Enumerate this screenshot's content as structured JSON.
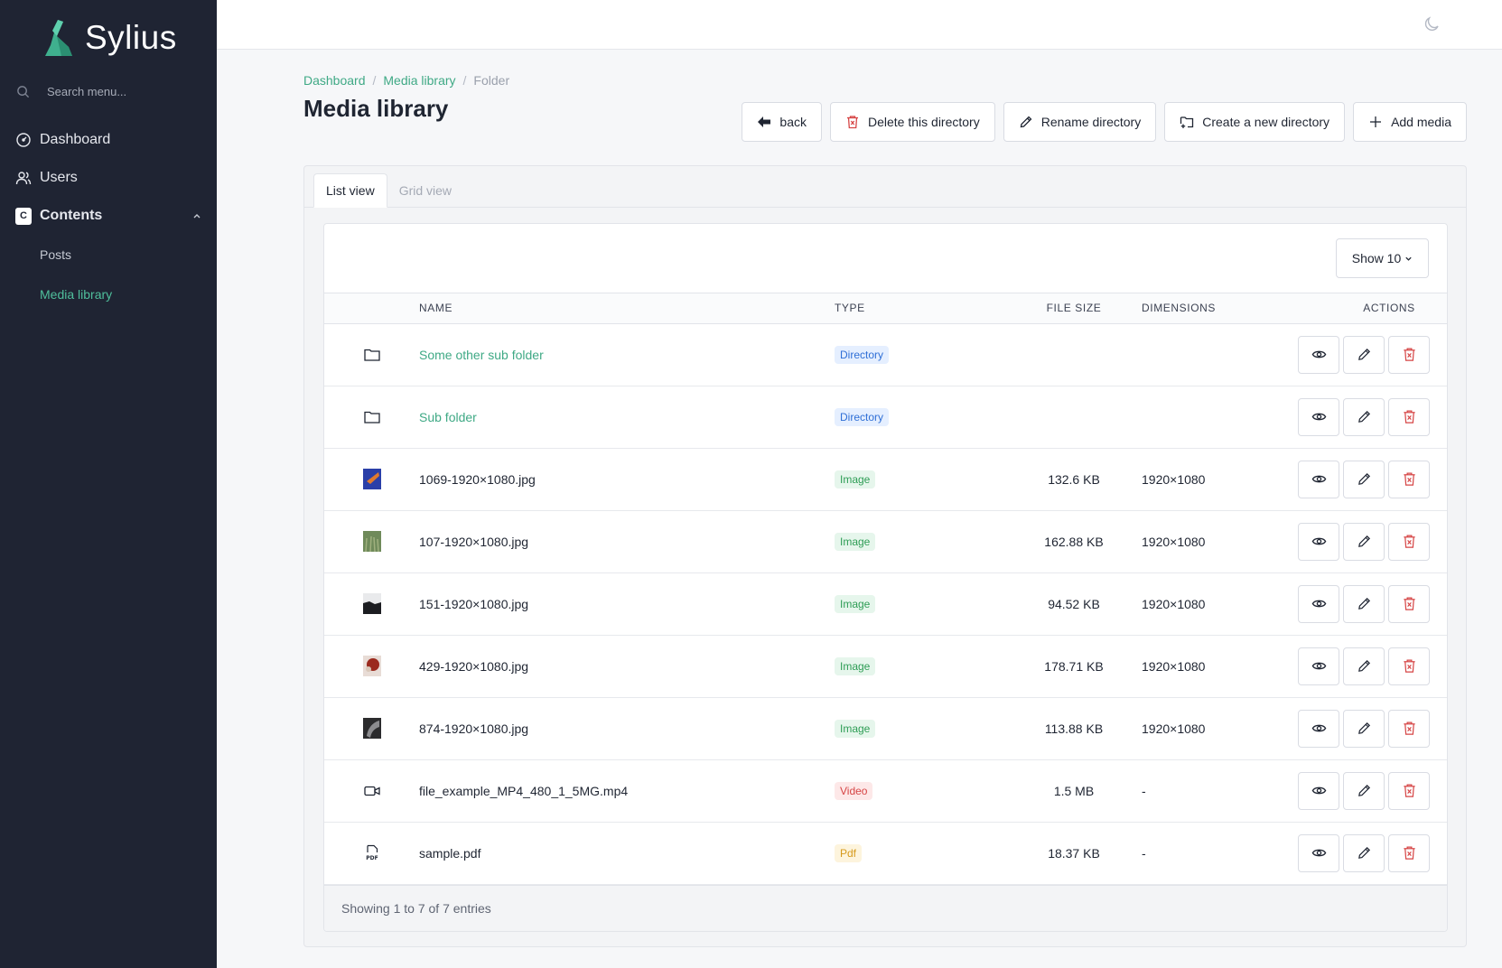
{
  "app": {
    "name": "Sylius",
    "brand_color": "#4fbf9c"
  },
  "sidebar": {
    "search_placeholder": "Search menu...",
    "items": [
      {
        "label": "Dashboard",
        "icon": "dashboard-icon"
      },
      {
        "label": "Users",
        "icon": "users-icon"
      },
      {
        "label": "Contents",
        "icon": "contents-icon",
        "badge": "C",
        "expanded": true
      }
    ],
    "sub_items": [
      {
        "label": "Posts",
        "active": false
      },
      {
        "label": "Media library",
        "active": true
      }
    ]
  },
  "breadcrumb": [
    {
      "label": "Dashboard"
    },
    {
      "label": "Media library"
    },
    {
      "label": "Folder"
    }
  ],
  "page_title": "Media library",
  "toolbar": {
    "back": "back",
    "delete_dir": "Delete this directory",
    "rename_dir": "Rename directory",
    "create_dir": "Create a new directory",
    "add_media": "Add media"
  },
  "tabs": [
    {
      "label": "List view",
      "active": true
    },
    {
      "label": "Grid view",
      "active": false
    }
  ],
  "show_select": "Show 10",
  "table": {
    "columns": [
      "Name",
      "Type",
      "File size",
      "Dimensions",
      "Actions"
    ],
    "rows": [
      {
        "icon": "folder-icon",
        "name": "Some other sub folder",
        "link": true,
        "type": "Directory",
        "type_color": "#2f6fd6",
        "type_bg": "#e5efff",
        "size": "",
        "dimensions": ""
      },
      {
        "icon": "folder-icon",
        "name": "Sub folder",
        "link": true,
        "type": "Directory",
        "type_color": "#2f6fd6",
        "type_bg": "#e5efff",
        "size": "",
        "dimensions": ""
      },
      {
        "icon": "image-thumbnail",
        "thumb": "blue",
        "name": "1069-1920×1080.jpg",
        "link": false,
        "type": "Image",
        "type_color": "#2e9d55",
        "type_bg": "#e6f6ec",
        "size": "132.6 KB",
        "dimensions": "1920×1080"
      },
      {
        "icon": "image-thumbnail",
        "thumb": "grass",
        "name": "107-1920×1080.jpg",
        "link": false,
        "type": "Image",
        "type_color": "#2e9d55",
        "type_bg": "#e6f6ec",
        "size": "162.88 KB",
        "dimensions": "1920×1080"
      },
      {
        "icon": "image-thumbnail",
        "thumb": "dark",
        "name": "151-1920×1080.jpg",
        "link": false,
        "type": "Image",
        "type_color": "#2e9d55",
        "type_bg": "#e6f6ec",
        "size": "94.52 KB",
        "dimensions": "1920×1080"
      },
      {
        "icon": "image-thumbnail",
        "thumb": "red",
        "name": "429-1920×1080.jpg",
        "link": false,
        "type": "Image",
        "type_color": "#2e9d55",
        "type_bg": "#e6f6ec",
        "size": "178.71 KB",
        "dimensions": "1920×1080"
      },
      {
        "icon": "image-thumbnail",
        "thumb": "bw",
        "name": "874-1920×1080.jpg",
        "link": false,
        "type": "Image",
        "type_color": "#2e9d55",
        "type_bg": "#e6f6ec",
        "size": "113.88 KB",
        "dimensions": "1920×1080"
      },
      {
        "icon": "video-icon",
        "name": "file_example_MP4_480_1_5MG.mp4",
        "link": false,
        "type": "Video",
        "type_color": "#d64545",
        "type_bg": "#fde8e8",
        "size": "1.5 MB",
        "dimensions": "-"
      },
      {
        "icon": "pdf-icon",
        "name": "sample.pdf",
        "link": false,
        "type": "Pdf",
        "type_color": "#d69a1c",
        "type_bg": "#fdf4dd",
        "size": "18.37 KB",
        "dimensions": "-"
      }
    ]
  },
  "footer_text": "Showing 1 to 7 of 7 entries"
}
